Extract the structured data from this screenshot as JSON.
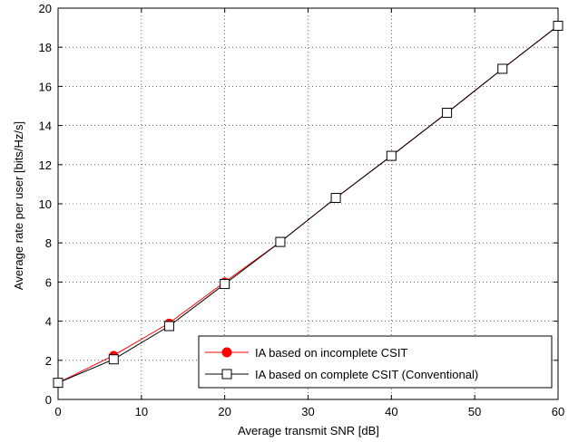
{
  "chart_data": {
    "type": "line",
    "xlabel": "Average transmit SNR [dB]",
    "ylabel": "Average rate per user [bits/Hz/s]",
    "xlim": [
      0,
      60
    ],
    "ylim": [
      0,
      20
    ],
    "xticks": [
      0,
      10,
      20,
      30,
      40,
      50,
      60
    ],
    "yticks": [
      0,
      2,
      4,
      6,
      8,
      10,
      12,
      14,
      16,
      18,
      20
    ],
    "grid": true,
    "legend_position": "bottom-right",
    "series": [
      {
        "name": "IA based on incomplete CSIT",
        "color": "#ff0000",
        "marker": "filled-circle",
        "x": [
          0,
          6.67,
          13.33,
          20,
          26.67,
          33.33,
          40,
          46.67,
          53.33,
          60
        ],
        "y": [
          0.85,
          2.25,
          3.9,
          6.0,
          8.05,
          10.3,
          12.45,
          14.65,
          16.9,
          19.1
        ]
      },
      {
        "name": "IA based on complete CSIT (Conventional)",
        "color": "#000000",
        "marker": "open-square",
        "x": [
          0,
          6.67,
          13.33,
          20,
          26.67,
          33.33,
          40,
          46.67,
          53.33,
          60
        ],
        "y": [
          0.85,
          2.05,
          3.75,
          5.9,
          8.05,
          10.3,
          12.45,
          14.65,
          16.9,
          19.1
        ]
      }
    ]
  }
}
